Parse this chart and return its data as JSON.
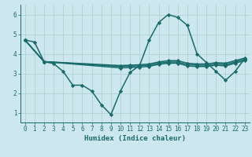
{
  "xlabel": "Humidex (Indice chaleur)",
  "bg_color": "#cce8ee",
  "grid_color": "#aacccc",
  "line_color": "#1a6b6b",
  "xlim": [
    -0.5,
    23.5
  ],
  "ylim": [
    0.5,
    6.5
  ],
  "yticks": [
    1,
    2,
    3,
    4,
    5,
    6
  ],
  "xticks": [
    0,
    1,
    2,
    3,
    4,
    5,
    6,
    7,
    8,
    9,
    10,
    11,
    12,
    13,
    14,
    15,
    16,
    17,
    18,
    19,
    20,
    21,
    22,
    23
  ],
  "lines": [
    {
      "x": [
        0,
        1,
        2,
        3,
        4,
        5,
        6,
        7,
        8,
        9,
        10,
        11,
        12,
        13,
        14,
        15,
        16,
        17,
        18,
        19,
        20,
        21,
        22,
        23
      ],
      "y": [
        4.7,
        4.6,
        3.6,
        3.5,
        3.1,
        2.4,
        2.4,
        2.1,
        1.4,
        0.9,
        2.1,
        3.05,
        3.4,
        4.7,
        5.6,
        6.0,
        5.85,
        5.45,
        4.0,
        3.55,
        3.1,
        2.65,
        3.1,
        3.75
      ],
      "linewidth": 1.1
    },
    {
      "x": [
        0,
        2,
        10,
        11,
        12,
        13,
        14,
        15,
        16,
        17,
        18,
        19,
        20,
        21,
        22,
        23
      ],
      "y": [
        4.7,
        3.6,
        3.4,
        3.42,
        3.44,
        3.48,
        3.58,
        3.65,
        3.65,
        3.52,
        3.48,
        3.48,
        3.55,
        3.52,
        3.65,
        3.78
      ],
      "linewidth": 1.1
    },
    {
      "x": [
        0,
        2,
        10,
        11,
        12,
        13,
        14,
        15,
        16,
        17,
        18,
        19,
        20,
        21,
        22,
        23
      ],
      "y": [
        4.7,
        3.6,
        3.35,
        3.37,
        3.39,
        3.42,
        3.52,
        3.58,
        3.58,
        3.45,
        3.42,
        3.42,
        3.48,
        3.45,
        3.58,
        3.72
      ],
      "linewidth": 1.1
    },
    {
      "x": [
        0,
        2,
        10,
        11,
        12,
        13,
        14,
        15,
        16,
        17,
        18,
        19,
        20,
        21,
        22,
        23
      ],
      "y": [
        4.7,
        3.6,
        3.28,
        3.3,
        3.32,
        3.36,
        3.46,
        3.52,
        3.52,
        3.38,
        3.35,
        3.35,
        3.42,
        3.38,
        3.52,
        3.65
      ],
      "linewidth": 1.1
    }
  ],
  "marker": "D",
  "markersize": 2.2
}
